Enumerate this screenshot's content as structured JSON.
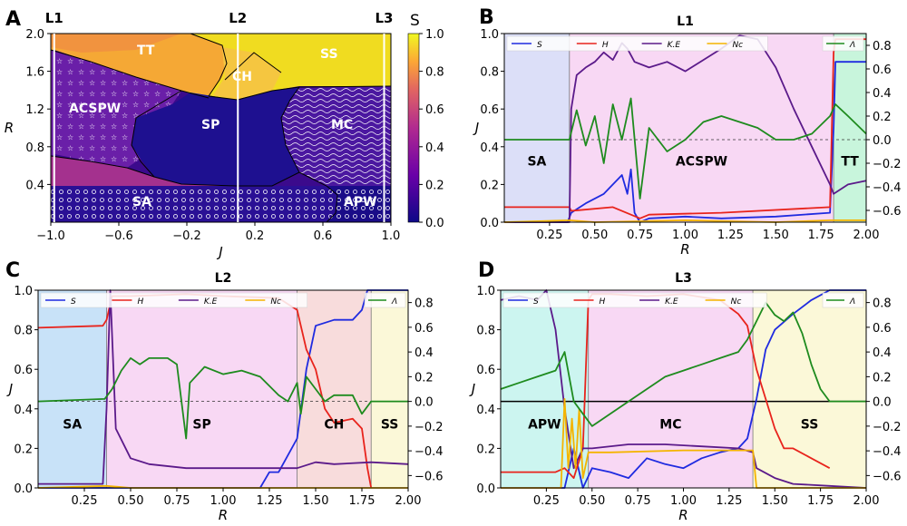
{
  "figure": {
    "panels": [
      "A",
      "B",
      "C",
      "D"
    ]
  },
  "colors": {
    "S": "#1f2be0",
    "H": "#e8231c",
    "KE": "#5b1a8a",
    "Nc": "#f4b400",
    "Lambda": "#1e8b1e"
  },
  "chart_data": [
    {
      "panel": "A",
      "type": "heatmap",
      "title": "",
      "xlabel": "J",
      "ylabel": "R",
      "xlim": [
        -1.0,
        1.0
      ],
      "ylim": [
        0.0,
        2.0
      ],
      "xticks": [
        "−1.0",
        "−0.6",
        "−0.2",
        "0.2",
        "0.6",
        "1.0"
      ],
      "yticks": [
        "0.4",
        "0.8",
        "1.2",
        "1.6",
        "2.0"
      ],
      "colorbar": {
        "label": "S",
        "range": [
          0.0,
          1.0
        ],
        "ticks": [
          "0.0",
          "0.2",
          "0.4",
          "0.6",
          "0.8",
          "1.0"
        ]
      },
      "cut_lines": [
        {
          "label": "L1",
          "J": -0.98
        },
        {
          "label": "L2",
          "J": 0.1
        },
        {
          "label": "L3",
          "J": 0.96
        }
      ],
      "regions": [
        {
          "label": "TT",
          "J": -0.55,
          "R": 1.82
        },
        {
          "label": "CH",
          "J": 0.15,
          "R": 1.55
        },
        {
          "label": "SS",
          "J": 0.75,
          "R": 1.82
        },
        {
          "label": "ACSPW",
          "J": -0.75,
          "R": 1.25
        },
        {
          "label": "SP",
          "J": -0.1,
          "R": 1.05
        },
        {
          "label": "MC",
          "J": 0.62,
          "R": 1.07
        },
        {
          "label": "SA",
          "J": -0.45,
          "R": 0.22
        },
        {
          "label": "APW",
          "J": 0.82,
          "R": 0.22
        }
      ]
    },
    {
      "panel": "B",
      "type": "line",
      "title": "L1",
      "xlabel": "R",
      "ylabel": "J",
      "xlim": [
        0.0,
        2.0
      ],
      "ylim_left": [
        0.0,
        1.0
      ],
      "ylim_right": [
        -0.7,
        0.9
      ],
      "xticks": [
        "0.25",
        "0.50",
        "0.75",
        "1.00",
        "1.25",
        "1.50",
        "1.75",
        "2.00"
      ],
      "yticks_left": [
        "0.0",
        "0.2",
        "0.4",
        "0.6",
        "0.8",
        "1.0"
      ],
      "yticks_right": [
        "−0.6",
        "−0.4",
        "−0.2",
        "0.0",
        "0.2",
        "0.4",
        "0.6",
        "0.8"
      ],
      "legend": [
        "S",
        "H",
        "K.E",
        "Nc",
        "Λ"
      ],
      "phases": [
        {
          "label": "SA",
          "from": 0.0,
          "to": 0.36,
          "color": "#dcdff8"
        },
        {
          "label": "ACSPW",
          "from": 0.36,
          "to": 1.82,
          "color": "#f8d8f4"
        },
        {
          "label": "TT",
          "from": 1.82,
          "to": 2.0,
          "color": "#c8f5dc"
        }
      ],
      "series": [
        {
          "name": "S",
          "axis": "left",
          "x": [
            0.0,
            0.35,
            0.37,
            0.45,
            0.55,
            0.6,
            0.65,
            0.68,
            0.7,
            0.72,
            0.75,
            0.8,
            1.0,
            1.2,
            1.5,
            1.8,
            1.82,
            1.83,
            2.0
          ],
          "y": [
            0.0,
            0.0,
            0.05,
            0.1,
            0.15,
            0.2,
            0.25,
            0.15,
            0.28,
            0.05,
            0.0,
            0.02,
            0.03,
            0.02,
            0.03,
            0.05,
            0.5,
            0.85,
            0.85
          ]
        },
        {
          "name": "H",
          "axis": "left",
          "x": [
            0.0,
            0.36,
            0.37,
            0.6,
            0.75,
            0.8,
            1.2,
            1.8,
            1.82,
            1.83,
            2.0
          ],
          "y": [
            0.08,
            0.08,
            0.06,
            0.08,
            0.02,
            0.04,
            0.05,
            0.08,
            0.9,
            0.97,
            0.97
          ]
        },
        {
          "name": "K.E",
          "axis": "left",
          "x": [
            0.0,
            0.36,
            0.37,
            0.4,
            0.45,
            0.5,
            0.55,
            0.6,
            0.65,
            0.68,
            0.72,
            0.8,
            0.9,
            1.0,
            1.1,
            1.2,
            1.3,
            1.4,
            1.5,
            1.6,
            1.7,
            1.8,
            1.82,
            1.9,
            2.0
          ],
          "y": [
            0.0,
            0.0,
            0.6,
            0.78,
            0.82,
            0.85,
            0.9,
            0.86,
            0.95,
            0.92,
            0.85,
            0.82,
            0.85,
            0.8,
            0.86,
            0.92,
            0.99,
            0.97,
            0.82,
            0.6,
            0.4,
            0.2,
            0.15,
            0.2,
            0.22
          ]
        },
        {
          "name": "Nc",
          "axis": "left",
          "x": [
            0.0,
            0.36,
            0.5,
            1.0,
            1.5,
            1.8,
            2.0
          ],
          "y": [
            0.0,
            0.01,
            0.0,
            0.01,
            0.0,
            0.01,
            0.01
          ]
        },
        {
          "name": "Λ",
          "axis": "right",
          "x": [
            0.0,
            0.36,
            0.4,
            0.45,
            0.5,
            0.55,
            0.6,
            0.65,
            0.7,
            0.75,
            0.8,
            0.9,
            1.0,
            1.1,
            1.2,
            1.3,
            1.4,
            1.5,
            1.6,
            1.7,
            1.8,
            1.83,
            1.9,
            2.0
          ],
          "y": [
            0.0,
            0.0,
            0.25,
            -0.05,
            0.2,
            -0.2,
            0.3,
            0.0,
            0.35,
            -0.5,
            0.1,
            -0.1,
            0.0,
            0.15,
            0.2,
            0.15,
            0.1,
            0.0,
            0.0,
            0.05,
            0.2,
            0.3,
            0.2,
            0.05
          ]
        }
      ]
    },
    {
      "panel": "C",
      "type": "line",
      "title": "L2",
      "xlabel": "R",
      "ylabel": "J",
      "xlim": [
        0.0,
        2.0
      ],
      "ylim_left": [
        0.0,
        1.0
      ],
      "ylim_right": [
        -0.7,
        0.9
      ],
      "xticks": [
        "0.25",
        "0.50",
        "0.75",
        "1.00",
        "1.25",
        "1.50",
        "1.75",
        "2.00"
      ],
      "yticks_left": [
        "0.0",
        "0.2",
        "0.4",
        "0.6",
        "0.8",
        "1.0"
      ],
      "yticks_right": [
        "−0.6",
        "−0.4",
        "−0.2",
        "0.0",
        "0.2",
        "0.4",
        "0.6",
        "0.8"
      ],
      "legend": [
        "S",
        "H",
        "K.E",
        "Nc",
        "Λ"
      ],
      "phases": [
        {
          "label": "SA",
          "from": 0.0,
          "to": 0.37,
          "color": "#c8e2f8"
        },
        {
          "label": "SP",
          "from": 0.37,
          "to": 1.4,
          "color": "#f8d8f4"
        },
        {
          "label": "CH",
          "from": 1.4,
          "to": 1.8,
          "color": "#f8dcdc"
        },
        {
          "label": "SS",
          "from": 1.8,
          "to": 2.0,
          "color": "#fbf8d8"
        }
      ],
      "series": [
        {
          "name": "S",
          "axis": "left",
          "x": [
            0.0,
            0.36,
            0.37,
            0.4,
            0.5,
            0.8,
            1.0,
            1.2,
            1.25,
            1.3,
            1.4,
            1.45,
            1.5,
            1.6,
            1.7,
            1.75,
            1.78,
            1.8,
            2.0
          ],
          "y": [
            0.0,
            0.0,
            0.0,
            0.0,
            0.0,
            0.0,
            0.0,
            0.0,
            0.08,
            0.08,
            0.25,
            0.6,
            0.82,
            0.85,
            0.85,
            0.9,
            1.0,
            1.0,
            1.0
          ]
        },
        {
          "name": "H",
          "axis": "left",
          "x": [
            0.0,
            0.35,
            0.37,
            0.4,
            0.5,
            0.8,
            1.0,
            1.3,
            1.4,
            1.45,
            1.5,
            1.55,
            1.6,
            1.7,
            1.75,
            1.78,
            1.8
          ],
          "y": [
            0.81,
            0.82,
            0.85,
            0.97,
            0.97,
            0.98,
            0.97,
            0.96,
            0.9,
            0.7,
            0.6,
            0.4,
            0.33,
            0.35,
            0.3,
            0.1,
            0.0
          ]
        },
        {
          "name": "K.E",
          "axis": "left",
          "x": [
            0.0,
            0.35,
            0.37,
            0.39,
            0.42,
            0.5,
            0.6,
            0.8,
            1.0,
            1.2,
            1.4,
            1.5,
            1.6,
            1.8,
            2.0
          ],
          "y": [
            0.02,
            0.02,
            0.4,
            1.0,
            0.3,
            0.15,
            0.12,
            0.1,
            0.1,
            0.1,
            0.1,
            0.13,
            0.12,
            0.13,
            0.12
          ]
        },
        {
          "name": "Nc",
          "axis": "left",
          "x": [
            0.0,
            0.37,
            0.5,
            1.0,
            1.5,
            2.0
          ],
          "y": [
            0.0,
            0.01,
            0.0,
            0.0,
            0.0,
            0.0
          ]
        },
        {
          "name": "Λ",
          "axis": "right",
          "x": [
            0.0,
            0.36,
            0.4,
            0.45,
            0.5,
            0.55,
            0.6,
            0.7,
            0.75,
            0.8,
            0.82,
            0.9,
            1.0,
            1.1,
            1.2,
            1.3,
            1.35,
            1.4,
            1.42,
            1.45,
            1.5,
            1.55,
            1.6,
            1.7,
            1.75,
            1.8,
            2.0
          ],
          "y": [
            0.0,
            0.02,
            0.1,
            0.25,
            0.35,
            0.3,
            0.35,
            0.35,
            0.3,
            -0.3,
            0.15,
            0.28,
            0.22,
            0.25,
            0.2,
            0.05,
            0.0,
            0.15,
            -0.1,
            0.2,
            0.1,
            0.0,
            0.05,
            0.05,
            -0.1,
            0.0,
            0.0
          ]
        }
      ]
    },
    {
      "panel": "D",
      "type": "line",
      "title": "L3",
      "xlabel": "R",
      "ylabel": "J",
      "xlim": [
        0.0,
        2.0
      ],
      "ylim_left": [
        0.0,
        1.0
      ],
      "ylim_right": [
        -0.7,
        0.9
      ],
      "xticks": [
        "0.25",
        "0.50",
        "0.75",
        "1.00",
        "1.25",
        "1.50",
        "1.75",
        "2.00"
      ],
      "yticks_left": [
        "0.0",
        "0.2",
        "0.4",
        "0.6",
        "0.8",
        "1.0"
      ],
      "yticks_right": [
        "−0.6",
        "−0.4",
        "−0.2",
        "0.0",
        "0.2",
        "0.4",
        "0.6",
        "0.8"
      ],
      "legend": [
        "S",
        "H",
        "K.E",
        "Nc",
        "Λ"
      ],
      "phases": [
        {
          "label": "APW",
          "from": 0.0,
          "to": 0.48,
          "color": "#ccf5f0"
        },
        {
          "label": "MC",
          "from": 0.48,
          "to": 1.38,
          "color": "#f8d8f4"
        },
        {
          "label": "SS",
          "from": 1.38,
          "to": 2.0,
          "color": "#fbf8d8"
        }
      ],
      "series": [
        {
          "name": "S",
          "axis": "left",
          "x": [
            0.0,
            0.35,
            0.4,
            0.45,
            0.5,
            0.6,
            0.7,
            0.8,
            0.9,
            1.0,
            1.1,
            1.2,
            1.3,
            1.35,
            1.4,
            1.45,
            1.5,
            1.6,
            1.7,
            1.8,
            1.9,
            2.0
          ],
          "y": [
            0.0,
            0.0,
            0.2,
            0.0,
            0.1,
            0.08,
            0.05,
            0.15,
            0.12,
            0.1,
            0.15,
            0.18,
            0.2,
            0.25,
            0.45,
            0.7,
            0.8,
            0.88,
            0.95,
            1.0,
            1.0,
            1.0
          ]
        },
        {
          "name": "H",
          "axis": "left",
          "x": [
            0.0,
            0.3,
            0.35,
            0.4,
            0.45,
            0.48,
            0.5,
            0.6,
            0.8,
            1.0,
            1.2,
            1.3,
            1.35,
            1.4,
            1.45,
            1.5,
            1.55,
            1.6,
            1.7,
            1.8
          ],
          "y": [
            0.08,
            0.08,
            0.1,
            0.05,
            0.2,
            0.95,
            0.98,
            0.98,
            0.97,
            0.98,
            0.95,
            0.88,
            0.82,
            0.6,
            0.45,
            0.3,
            0.2,
            0.2,
            0.15,
            0.1
          ]
        },
        {
          "name": "K.E",
          "axis": "left",
          "x": [
            0.0,
            0.1,
            0.2,
            0.25,
            0.3,
            0.35,
            0.4,
            0.45,
            0.5,
            0.7,
            0.9,
            1.1,
            1.3,
            1.38,
            1.4,
            1.5,
            1.6,
            1.8,
            2.0
          ],
          "y": [
            0.95,
            0.97,
            0.95,
            1.0,
            0.8,
            0.4,
            0.1,
            0.2,
            0.2,
            0.22,
            0.22,
            0.21,
            0.2,
            0.18,
            0.1,
            0.05,
            0.02,
            0.01,
            0.0
          ]
        },
        {
          "name": "Nc",
          "axis": "left",
          "x": [
            0.0,
            0.33,
            0.35,
            0.37,
            0.39,
            0.41,
            0.43,
            0.45,
            0.48,
            0.6,
            1.0,
            1.38,
            1.4,
            2.0
          ],
          "y": [
            0.0,
            0.0,
            0.45,
            0.1,
            0.35,
            0.1,
            0.4,
            0.05,
            0.18,
            0.18,
            0.19,
            0.19,
            0.0,
            0.0
          ]
        },
        {
          "name": "Λ",
          "axis": "right",
          "x": [
            0.0,
            0.1,
            0.2,
            0.3,
            0.35,
            0.4,
            0.45,
            0.5,
            0.6,
            0.7,
            0.8,
            0.9,
            1.0,
            1.1,
            1.2,
            1.3,
            1.35,
            1.4,
            1.45,
            1.5,
            1.55,
            1.6,
            1.65,
            1.7,
            1.75,
            1.8,
            2.0
          ],
          "y": [
            0.1,
            0.15,
            0.2,
            0.25,
            0.4,
            0.0,
            -0.1,
            -0.2,
            -0.1,
            0.0,
            0.1,
            0.2,
            0.25,
            0.3,
            0.35,
            0.4,
            0.5,
            0.65,
            0.8,
            0.7,
            0.65,
            0.72,
            0.55,
            0.3,
            0.1,
            0.0,
            0.0
          ]
        }
      ]
    }
  ]
}
